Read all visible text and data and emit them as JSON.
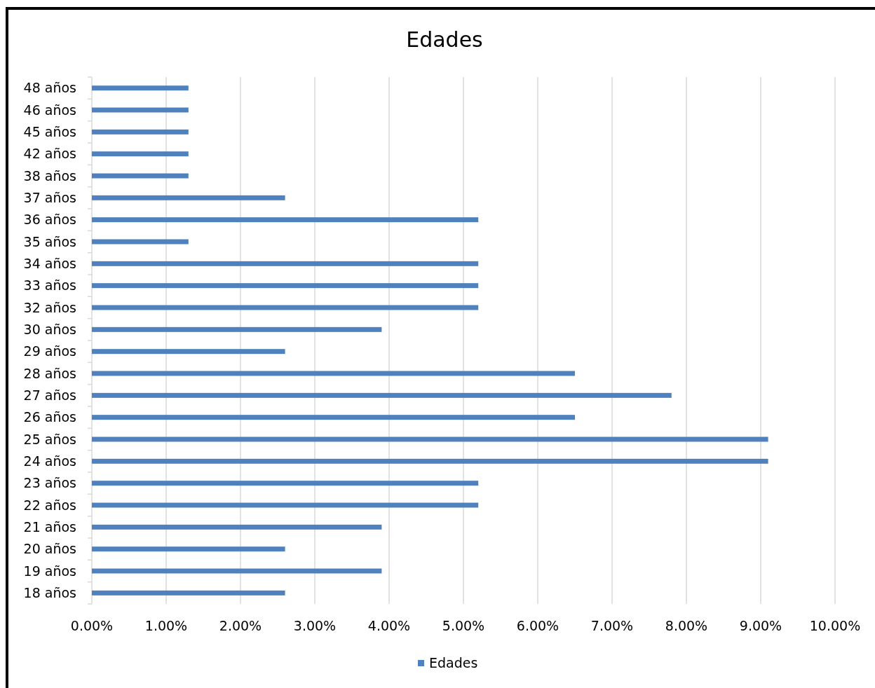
{
  "chart_data": {
    "type": "bar",
    "title": "Edades",
    "orientation": "horizontal",
    "categories": [
      "48 años",
      "46 años",
      "45 años",
      "42 años",
      "38 años",
      "37 años",
      "36 años",
      "35 años",
      "34 años",
      "33 años",
      "32 años",
      "30 años",
      "29 años",
      "28 años",
      "27 años",
      "26 años",
      "25 años",
      "24 años",
      "23 años",
      "22 años",
      "21 años",
      "20 años",
      "19 años",
      "18 años"
    ],
    "series": [
      {
        "name": "Edades",
        "color": "#4e81bd",
        "values": [
          1.3,
          1.3,
          1.3,
          1.3,
          1.3,
          2.6,
          5.2,
          1.3,
          5.2,
          5.2,
          5.2,
          3.9,
          2.6,
          6.5,
          7.8,
          6.5,
          9.1,
          9.1,
          5.2,
          5.2,
          3.9,
          2.6,
          3.9,
          2.6
        ]
      }
    ],
    "xlim": [
      0,
      10
    ],
    "xticks": [
      {
        "value": 0,
        "label": "0.00%"
      },
      {
        "value": 1,
        "label": "1.00%"
      },
      {
        "value": 2,
        "label": "2.00%"
      },
      {
        "value": 3,
        "label": "3.00%"
      },
      {
        "value": 4,
        "label": "4.00%"
      },
      {
        "value": 5,
        "label": "5.00%"
      },
      {
        "value": 6,
        "label": "6.00%"
      },
      {
        "value": 7,
        "label": "7.00%"
      },
      {
        "value": 8,
        "label": "8.00%"
      },
      {
        "value": 9,
        "label": "9.00%"
      },
      {
        "value": 10,
        "label": "10.00%"
      }
    ],
    "grid": "x",
    "legend": "bottom"
  }
}
